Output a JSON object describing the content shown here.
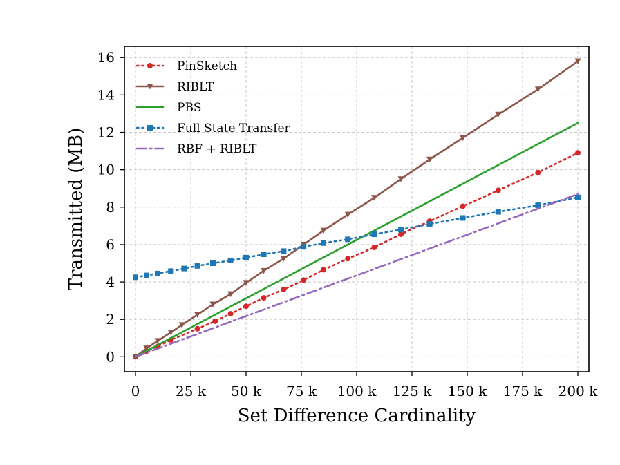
{
  "chart_data": {
    "type": "line",
    "title": "",
    "xlabel": "Set Difference Cardinality",
    "ylabel": "Transmitted (MB)",
    "xlim": [
      -5000,
      205000
    ],
    "ylim": [
      -0.8,
      16.6
    ],
    "x_ticks": [
      0,
      25000,
      50000,
      75000,
      100000,
      125000,
      150000,
      175000,
      200000
    ],
    "x_tick_labels": [
      "0",
      "25 k",
      "50 k",
      "75 k",
      "100 k",
      "125 k",
      "150 k",
      "175 k",
      "200 k"
    ],
    "y_ticks": [
      0,
      2,
      4,
      6,
      8,
      10,
      12,
      14,
      16
    ],
    "y_tick_labels": [
      "0",
      "2",
      "4",
      "6",
      "8",
      "10",
      "12",
      "14",
      "16"
    ],
    "grid": true,
    "legend_position": "top-left",
    "series": [
      {
        "name": "PinSketch",
        "color": "#d62728",
        "style": "dotted",
        "marker": "circle",
        "x": [
          0,
          5000,
          10000,
          16000,
          28000,
          36000,
          43000,
          50000,
          58000,
          67000,
          76000,
          85000,
          96000,
          108000,
          120000,
          133000,
          148000,
          164000,
          182000,
          200000
        ],
        "y": [
          0.0,
          0.3,
          0.55,
          0.9,
          1.5,
          1.9,
          2.3,
          2.7,
          3.15,
          3.6,
          4.1,
          4.65,
          5.25,
          5.85,
          6.55,
          7.25,
          8.05,
          8.9,
          9.85,
          10.9
        ]
      },
      {
        "name": "RIBLT",
        "color": "#8c564b",
        "style": "solid",
        "marker": "triangle-down",
        "x": [
          0,
          5000,
          10000,
          16000,
          21000,
          28000,
          35000,
          43000,
          50000,
          58000,
          67000,
          76000,
          85000,
          96000,
          108000,
          120000,
          133000,
          148000,
          164000,
          182000,
          200000
        ],
        "y": [
          0.0,
          0.45,
          0.85,
          1.3,
          1.7,
          2.25,
          2.8,
          3.35,
          3.95,
          4.6,
          5.25,
          6.0,
          6.75,
          7.6,
          8.5,
          9.5,
          10.55,
          11.7,
          12.95,
          14.3,
          15.8
        ]
      },
      {
        "name": "PBS",
        "color": "#2ca02c",
        "style": "solid",
        "marker": "none",
        "x": [
          0,
          200000
        ],
        "y": [
          0.0,
          12.5
        ]
      },
      {
        "name": "Full State Transfer",
        "color": "#1f77b4",
        "style": "dotted",
        "marker": "square",
        "x": [
          0,
          5000,
          10000,
          16000,
          22000,
          28000,
          35000,
          43000,
          50000,
          58000,
          67000,
          76000,
          85000,
          96000,
          108000,
          120000,
          133000,
          148000,
          164000,
          182000,
          200000
        ],
        "y": [
          4.25,
          4.35,
          4.45,
          4.58,
          4.72,
          4.86,
          5.0,
          5.15,
          5.3,
          5.48,
          5.65,
          5.88,
          6.08,
          6.28,
          6.55,
          6.8,
          7.1,
          7.42,
          7.75,
          8.1,
          8.52
        ]
      },
      {
        "name": "RBF + RIBLT",
        "color": "#9467bd",
        "style": "dashdot",
        "marker": "none",
        "x": [
          0,
          200000
        ],
        "y": [
          0.0,
          8.7
        ]
      }
    ]
  }
}
